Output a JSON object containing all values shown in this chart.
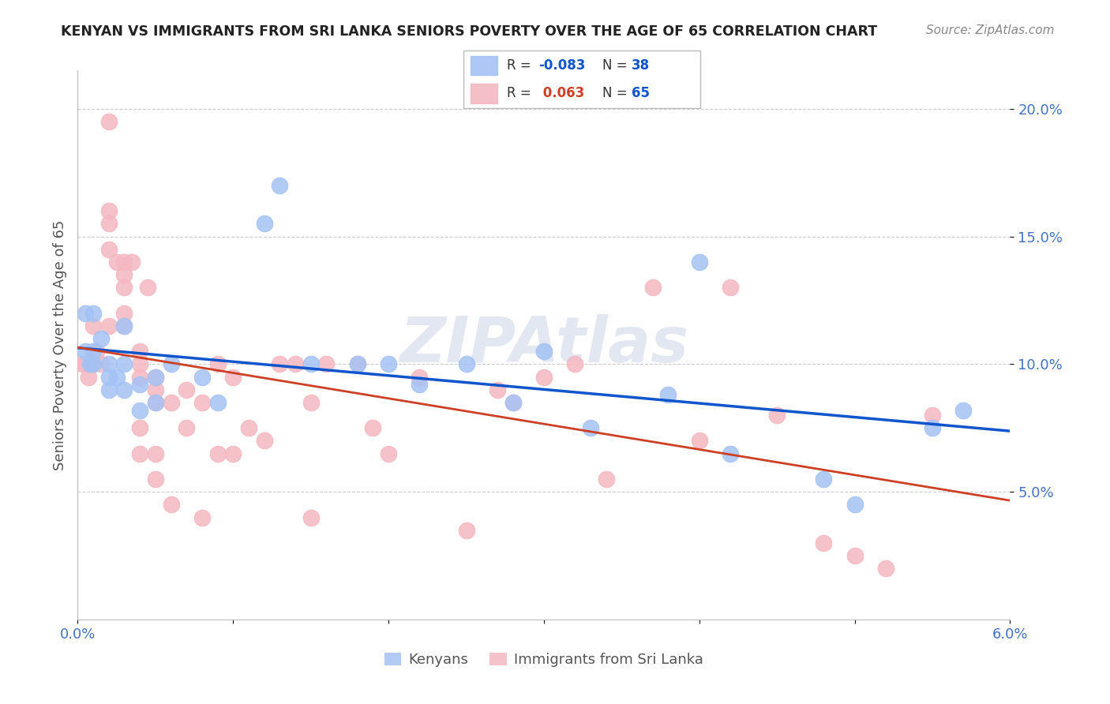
{
  "title": "KENYAN VS IMMIGRANTS FROM SRI LANKA SENIORS POVERTY OVER THE AGE OF 65 CORRELATION CHART",
  "source": "Source: ZipAtlas.com",
  "ylabel": "Seniors Poverty Over the Age of 65",
  "xlabel_kenyans": "Kenyans",
  "xlabel_srilanka": "Immigrants from Sri Lanka",
  "xlim": [
    0.0,
    0.06
  ],
  "ylim": [
    0.0,
    0.215
  ],
  "yticks": [
    0.05,
    0.1,
    0.15,
    0.2
  ],
  "ytick_labels": [
    "5.0%",
    "10.0%",
    "15.0%",
    "20.0%"
  ],
  "xticks": [
    0.0,
    0.06
  ],
  "xtick_labels": [
    "0.0%",
    "6.0%"
  ],
  "kenyan_R": -0.083,
  "kenyan_N": 38,
  "srilanka_R": 0.063,
  "srilanka_N": 65,
  "kenyan_color": "#a4c2f4",
  "srilanka_color": "#f4b8c1",
  "kenyan_line_color": "#1155cc",
  "srilanka_line_color": "#cc4125",
  "watermark": "ZIPAtlas",
  "kenyan_x": [
    0.0005,
    0.0005,
    0.0008,
    0.001,
    0.001,
    0.001,
    0.0015,
    0.002,
    0.002,
    0.002,
    0.0025,
    0.003,
    0.003,
    0.003,
    0.004,
    0.004,
    0.005,
    0.005,
    0.006,
    0.008,
    0.009,
    0.012,
    0.013,
    0.015,
    0.018,
    0.02,
    0.022,
    0.025,
    0.028,
    0.03,
    0.033,
    0.038,
    0.04,
    0.042,
    0.048,
    0.05,
    0.055,
    0.057
  ],
  "kenyan_y": [
    0.12,
    0.105,
    0.1,
    0.12,
    0.105,
    0.1,
    0.11,
    0.1,
    0.095,
    0.09,
    0.095,
    0.115,
    0.1,
    0.09,
    0.092,
    0.082,
    0.085,
    0.095,
    0.1,
    0.095,
    0.085,
    0.155,
    0.17,
    0.1,
    0.1,
    0.1,
    0.092,
    0.1,
    0.085,
    0.105,
    0.075,
    0.088,
    0.14,
    0.065,
    0.055,
    0.045,
    0.075,
    0.082
  ],
  "srilanka_x": [
    0.0003,
    0.0005,
    0.0007,
    0.001,
    0.001,
    0.0012,
    0.0015,
    0.002,
    0.002,
    0.002,
    0.002,
    0.002,
    0.0025,
    0.003,
    0.003,
    0.003,
    0.003,
    0.003,
    0.0035,
    0.004,
    0.004,
    0.004,
    0.004,
    0.004,
    0.0045,
    0.005,
    0.005,
    0.005,
    0.005,
    0.005,
    0.006,
    0.006,
    0.007,
    0.007,
    0.008,
    0.008,
    0.009,
    0.009,
    0.01,
    0.01,
    0.011,
    0.012,
    0.013,
    0.014,
    0.015,
    0.015,
    0.016,
    0.018,
    0.019,
    0.02,
    0.022,
    0.025,
    0.027,
    0.028,
    0.03,
    0.032,
    0.034,
    0.037,
    0.04,
    0.042,
    0.045,
    0.048,
    0.05,
    0.052,
    0.055
  ],
  "srilanka_y": [
    0.1,
    0.1,
    0.095,
    0.115,
    0.1,
    0.105,
    0.1,
    0.195,
    0.16,
    0.155,
    0.145,
    0.115,
    0.14,
    0.14,
    0.135,
    0.13,
    0.12,
    0.115,
    0.14,
    0.105,
    0.1,
    0.095,
    0.075,
    0.065,
    0.13,
    0.095,
    0.09,
    0.085,
    0.065,
    0.055,
    0.085,
    0.045,
    0.09,
    0.075,
    0.085,
    0.04,
    0.1,
    0.065,
    0.095,
    0.065,
    0.075,
    0.07,
    0.1,
    0.1,
    0.085,
    0.04,
    0.1,
    0.1,
    0.075,
    0.065,
    0.095,
    0.035,
    0.09,
    0.085,
    0.095,
    0.1,
    0.055,
    0.13,
    0.07,
    0.13,
    0.08,
    0.03,
    0.025,
    0.02,
    0.08
  ]
}
